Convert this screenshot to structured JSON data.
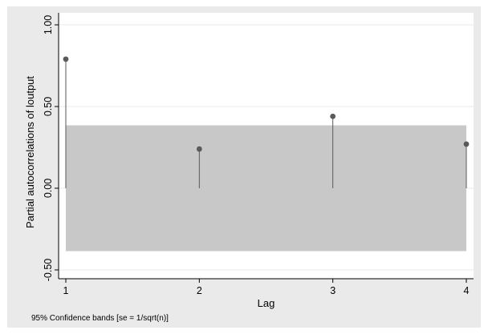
{
  "chart_data": {
    "type": "scatter",
    "subtype": "spike-plot (partial autocorrelation function)",
    "xlabel": "Lag",
    "ylabel": "Partial autocorrelations of loutput",
    "x_ticks": [
      1,
      2,
      3,
      4
    ],
    "x_tick_labels": [
      "1",
      "2",
      "3",
      "4"
    ],
    "y_ticks": [
      -0.5,
      0,
      0.5,
      1
    ],
    "y_tick_labels": [
      "-0.50",
      "0.00",
      "0.50",
      "1.00"
    ],
    "xlim": [
      1,
      4
    ],
    "ylim": [
      -0.5,
      1.0
    ],
    "grid": "horizontal",
    "legend": "none",
    "series": [
      {
        "x": [
          1,
          2,
          3,
          4
        ],
        "values": [
          0.79,
          0.24,
          0.44,
          0.27
        ]
      }
    ],
    "confidence_band": {
      "lower": -0.385,
      "upper": 0.385
    },
    "note": "95% Confidence bands [se = 1/sqrt(n)]",
    "colors": {
      "background": "#eaeaea",
      "plot_area": "#ffffff",
      "band": "#c8c8c8",
      "marker": "#5a5a5a",
      "spike": "#5a5a5a",
      "grid": "#eaeaea",
      "axis": "#000000"
    }
  }
}
